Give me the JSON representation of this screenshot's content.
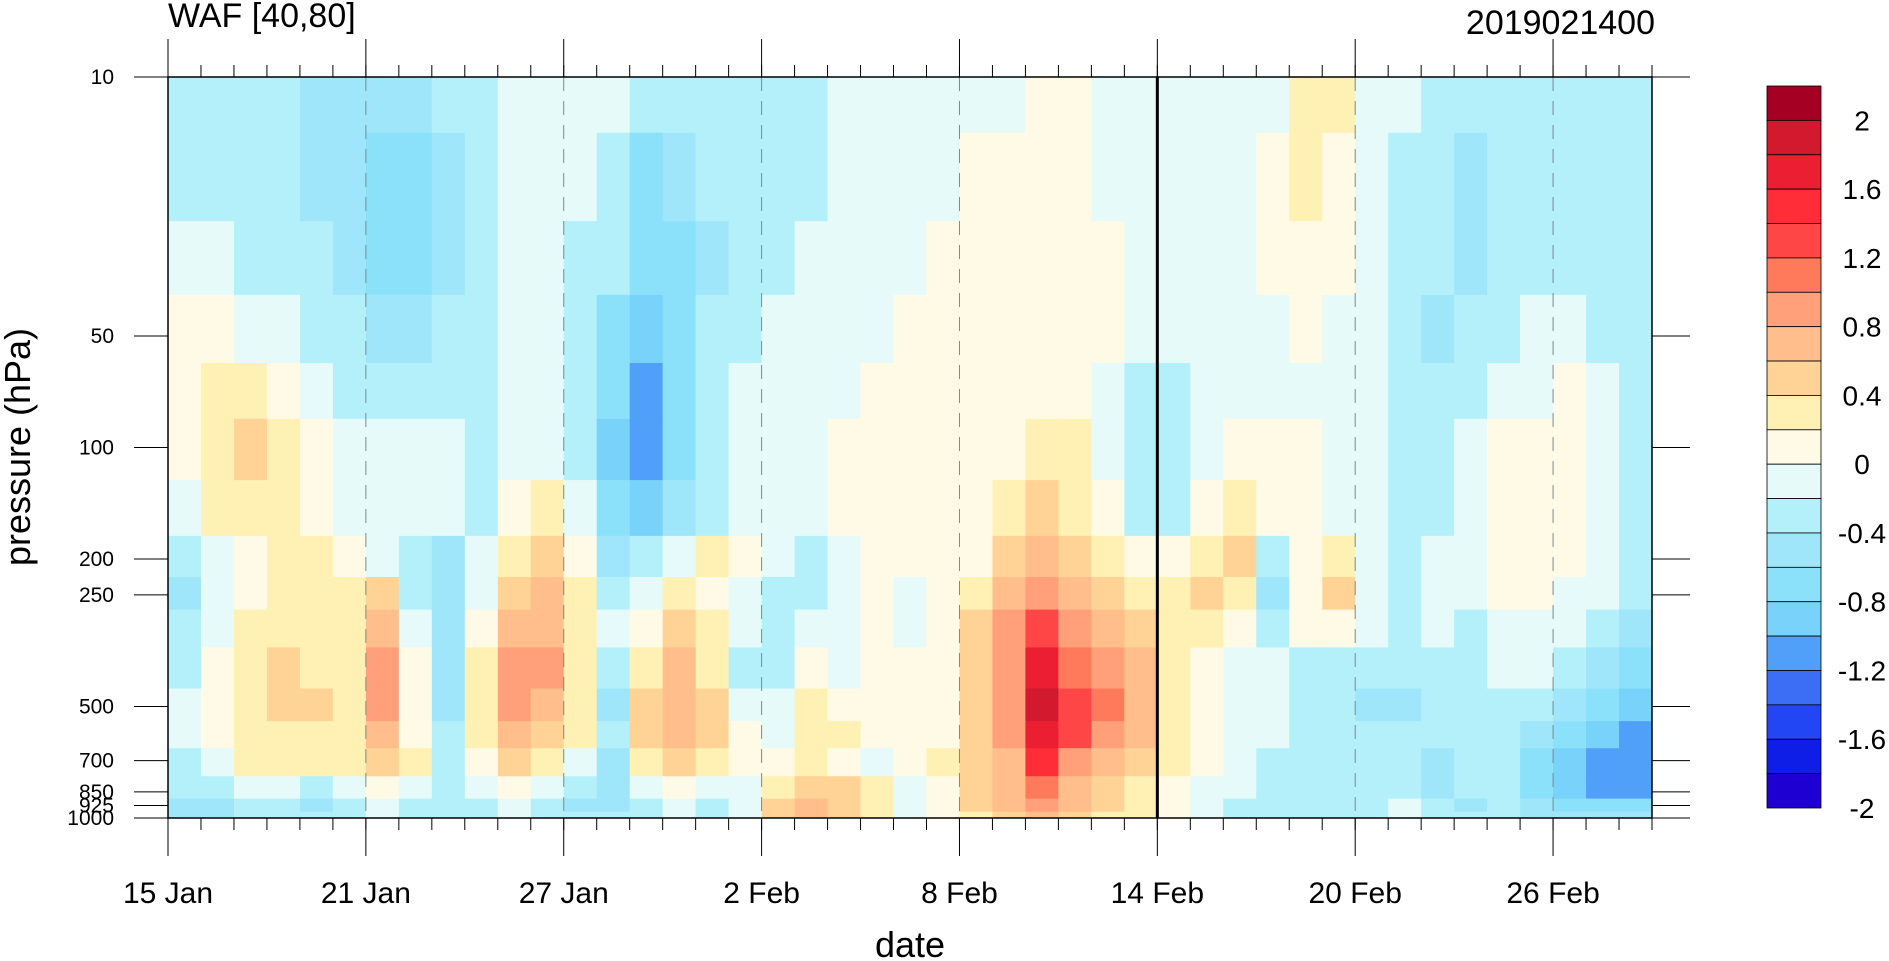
{
  "chart_data": {
    "type": "heatmap",
    "title_left": "WAF [40,80]",
    "title_right": "2019021400",
    "xlabel": "date",
    "ylabel": "pressure (hPa)",
    "x_ticks": [
      "15 Jan",
      "21 Jan",
      "27 Jan",
      "2 Feb",
      "8 Feb",
      "14 Feb",
      "20 Feb",
      "26 Feb"
    ],
    "x_range": [
      "2019-01-15",
      "2019-03-01"
    ],
    "y_ticks": [
      10,
      50,
      100,
      200,
      250,
      500,
      700,
      850,
      925,
      1000
    ],
    "y_range": [
      1000,
      10
    ],
    "y_scale": "log",
    "marked_date": "14 Feb",
    "colorbar": {
      "tick_labels": [
        "2",
        "1.6",
        "1.2",
        "0.8",
        "0.4",
        "0",
        "-0.4",
        "-0.8",
        "-1.2",
        "-1.6",
        "-2"
      ],
      "levels": [
        -2.2,
        -2.0,
        -1.8,
        -1.6,
        -1.4,
        -1.2,
        -1.0,
        -0.8,
        -0.6,
        -0.4,
        -0.2,
        0.0,
        0.2,
        0.4,
        0.6,
        0.8,
        1.0,
        1.2,
        1.4,
        1.6,
        1.8,
        2.0,
        2.2
      ],
      "colors": [
        "#1e00d2",
        "#0f1ee6",
        "#2346f5",
        "#3c6ef5",
        "#50a0fa",
        "#78d2fa",
        "#8ce1fa",
        "#a0e6fa",
        "#b4f0fa",
        "#e6fafa",
        "#fffae6",
        "#fff0b4",
        "#ffd296",
        "#ffbe8c",
        "#ffa07a",
        "#ff7a5a",
        "#ff4646",
        "#ff2d37",
        "#eb1e32",
        "#d2192d",
        "#a50023"
      ]
    },
    "grid": {
      "pressure": [
        10,
        20,
        30,
        50,
        70,
        100,
        150,
        200,
        250,
        300,
        400,
        500,
        600,
        700,
        850,
        925,
        1000
      ],
      "values": [
        [
          -0.5,
          -0.5,
          -0.5,
          -0.5,
          -0.7,
          -0.7,
          -0.7,
          -0.7,
          -0.5,
          -0.5,
          -0.3,
          -0.3,
          -0.3,
          -0.3,
          -0.5,
          -0.5,
          -0.5,
          -0.5,
          -0.5,
          -0.5,
          -0.3,
          -0.3,
          -0.3,
          -0.3,
          -0.3,
          -0.3,
          -0.1,
          -0.1,
          -0.3,
          -0.3,
          -0.3,
          -0.3,
          -0.3,
          -0.3,
          0.1,
          0.1,
          -0.3,
          -0.3,
          -0.5,
          -0.5,
          -0.5,
          -0.5,
          -0.5,
          -0.5,
          -0.5
        ],
        [
          -0.5,
          -0.5,
          -0.5,
          -0.5,
          -0.7,
          -0.7,
          -0.9,
          -0.9,
          -0.7,
          -0.5,
          -0.3,
          -0.3,
          -0.3,
          -0.5,
          -0.9,
          -0.7,
          -0.5,
          -0.5,
          -0.5,
          -0.5,
          -0.3,
          -0.3,
          -0.3,
          -0.3,
          -0.1,
          -0.1,
          -0.1,
          -0.1,
          -0.3,
          -0.3,
          -0.3,
          -0.3,
          -0.3,
          -0.1,
          0.1,
          -0.1,
          -0.3,
          -0.5,
          -0.5,
          -0.7,
          -0.5,
          -0.5,
          -0.5,
          -0.5,
          -0.5
        ],
        [
          -0.3,
          -0.3,
          -0.5,
          -0.5,
          -0.5,
          -0.7,
          -0.9,
          -0.9,
          -0.7,
          -0.5,
          -0.3,
          -0.3,
          -0.5,
          -0.5,
          -0.9,
          -0.9,
          -0.7,
          -0.5,
          -0.5,
          -0.3,
          -0.3,
          -0.3,
          -0.3,
          -0.1,
          -0.1,
          -0.1,
          -0.1,
          -0.1,
          -0.1,
          -0.3,
          -0.3,
          -0.3,
          -0.3,
          -0.1,
          -0.1,
          -0.1,
          -0.3,
          -0.5,
          -0.5,
          -0.7,
          -0.5,
          -0.5,
          -0.5,
          -0.5,
          -0.5
        ],
        [
          -0.1,
          -0.1,
          -0.3,
          -0.3,
          -0.5,
          -0.5,
          -0.7,
          -0.7,
          -0.5,
          -0.5,
          -0.3,
          -0.3,
          -0.5,
          -0.9,
          -1.1,
          -0.9,
          -0.5,
          -0.5,
          -0.3,
          -0.3,
          -0.3,
          -0.3,
          -0.1,
          -0.1,
          -0.1,
          -0.1,
          -0.1,
          -0.1,
          -0.1,
          -0.3,
          -0.3,
          -0.3,
          -0.3,
          -0.3,
          -0.1,
          -0.3,
          -0.3,
          -0.5,
          -0.7,
          -0.5,
          -0.5,
          -0.3,
          -0.3,
          -0.5,
          -0.5
        ],
        [
          -0.1,
          0.1,
          0.1,
          -0.1,
          -0.3,
          -0.5,
          -0.5,
          -0.5,
          -0.5,
          -0.5,
          -0.3,
          -0.3,
          -0.5,
          -0.9,
          -1.3,
          -0.9,
          -0.5,
          -0.3,
          -0.3,
          -0.3,
          -0.3,
          -0.1,
          -0.1,
          -0.1,
          -0.1,
          -0.1,
          -0.1,
          -0.1,
          -0.3,
          -0.5,
          -0.5,
          -0.3,
          -0.3,
          -0.3,
          -0.3,
          -0.3,
          -0.3,
          -0.5,
          -0.5,
          -0.5,
          -0.3,
          -0.3,
          -0.1,
          -0.3,
          -0.5
        ],
        [
          -0.1,
          0.1,
          0.3,
          0.1,
          -0.1,
          -0.3,
          -0.3,
          -0.3,
          -0.3,
          -0.5,
          -0.3,
          -0.3,
          -0.5,
          -1.1,
          -1.3,
          -0.9,
          -0.5,
          -0.3,
          -0.3,
          -0.3,
          -0.1,
          -0.1,
          -0.1,
          -0.1,
          -0.1,
          -0.1,
          0.1,
          0.1,
          -0.3,
          -0.5,
          -0.5,
          -0.3,
          -0.1,
          -0.1,
          -0.1,
          -0.3,
          -0.3,
          -0.5,
          -0.5,
          -0.3,
          -0.1,
          -0.1,
          -0.1,
          -0.3,
          -0.5
        ],
        [
          -0.3,
          0.1,
          0.1,
          0.1,
          -0.1,
          -0.3,
          -0.3,
          -0.3,
          -0.3,
          -0.5,
          -0.1,
          0.1,
          -0.3,
          -0.9,
          -1.1,
          -0.7,
          -0.5,
          -0.3,
          -0.3,
          -0.3,
          -0.1,
          -0.1,
          -0.1,
          -0.1,
          -0.1,
          0.1,
          0.3,
          0.1,
          -0.1,
          -0.5,
          -0.5,
          -0.1,
          0.1,
          -0.1,
          -0.1,
          -0.3,
          -0.3,
          -0.5,
          -0.5,
          -0.3,
          -0.1,
          -0.1,
          -0.1,
          -0.3,
          -0.5
        ],
        [
          -0.5,
          -0.3,
          -0.1,
          0.1,
          0.1,
          -0.1,
          -0.3,
          -0.5,
          -0.7,
          -0.3,
          0.1,
          0.3,
          -0.1,
          -0.7,
          -0.5,
          -0.3,
          0.1,
          -0.1,
          -0.3,
          -0.5,
          -0.3,
          -0.1,
          -0.1,
          -0.1,
          -0.1,
          0.3,
          0.5,
          0.3,
          0.1,
          -0.1,
          -0.1,
          0.1,
          0.3,
          -0.5,
          -0.1,
          0.1,
          -0.3,
          -0.5,
          -0.3,
          -0.3,
          -0.1,
          -0.1,
          -0.1,
          -0.3,
          -0.5
        ],
        [
          -0.7,
          -0.3,
          -0.1,
          0.1,
          0.1,
          0.1,
          0.3,
          -0.5,
          -0.7,
          -0.3,
          0.3,
          0.5,
          0.1,
          -0.5,
          -0.3,
          0.1,
          -0.1,
          -0.3,
          -0.5,
          -0.5,
          -0.3,
          -0.1,
          -0.3,
          -0.1,
          0.1,
          0.5,
          0.7,
          0.5,
          0.3,
          0.1,
          0.1,
          0.3,
          0.1,
          -0.7,
          -0.1,
          0.3,
          -0.3,
          -0.5,
          -0.3,
          -0.3,
          -0.1,
          -0.1,
          -0.3,
          -0.3,
          -0.5
        ],
        [
          -0.5,
          -0.3,
          0.1,
          0.1,
          0.1,
          0.1,
          0.5,
          -0.3,
          -0.7,
          -0.1,
          0.5,
          0.5,
          0.1,
          -0.3,
          -0.1,
          0.3,
          0.1,
          -0.3,
          -0.5,
          -0.3,
          -0.3,
          -0.1,
          -0.3,
          -0.1,
          0.3,
          0.7,
          1.1,
          0.7,
          0.5,
          0.3,
          0.1,
          0.1,
          -0.1,
          -0.5,
          -0.1,
          -0.1,
          -0.3,
          -0.5,
          -0.3,
          -0.5,
          -0.3,
          -0.3,
          -0.3,
          -0.5,
          -0.7
        ],
        [
          -0.5,
          -0.1,
          0.1,
          0.3,
          0.1,
          0.1,
          0.7,
          -0.1,
          -0.7,
          0.1,
          0.7,
          0.7,
          0.1,
          -0.5,
          0.1,
          0.5,
          0.1,
          -0.5,
          -0.5,
          -0.1,
          -0.3,
          -0.1,
          -0.1,
          -0.1,
          0.3,
          0.7,
          1.5,
          0.9,
          0.7,
          0.5,
          0.1,
          -0.1,
          -0.3,
          -0.3,
          -0.5,
          -0.5,
          -0.5,
          -0.5,
          -0.5,
          -0.5,
          -0.3,
          -0.3,
          -0.5,
          -0.7,
          -0.9
        ],
        [
          -0.3,
          -0.1,
          0.1,
          0.3,
          0.3,
          0.1,
          0.7,
          -0.1,
          -0.7,
          0.1,
          0.7,
          0.5,
          0.1,
          -0.7,
          0.3,
          0.5,
          0.3,
          -0.3,
          -0.3,
          0.1,
          -0.1,
          -0.1,
          -0.1,
          -0.1,
          0.3,
          0.7,
          1.7,
          1.1,
          0.9,
          0.5,
          0.1,
          -0.1,
          -0.3,
          -0.3,
          -0.5,
          -0.5,
          -0.7,
          -0.7,
          -0.5,
          -0.5,
          -0.5,
          -0.5,
          -0.7,
          -0.9,
          -1.1
        ],
        [
          -0.3,
          -0.1,
          0.1,
          0.1,
          0.1,
          0.1,
          0.5,
          -0.1,
          -0.5,
          0.1,
          0.5,
          0.3,
          0.1,
          -0.5,
          0.3,
          0.5,
          0.3,
          -0.1,
          -0.3,
          0.1,
          0.1,
          -0.1,
          -0.1,
          -0.1,
          0.3,
          0.7,
          1.5,
          1.1,
          0.7,
          0.5,
          0.1,
          -0.1,
          -0.3,
          -0.3,
          -0.5,
          -0.5,
          -0.5,
          -0.5,
          -0.5,
          -0.5,
          -0.5,
          -0.7,
          -0.9,
          -1.1,
          -1.3
        ],
        [
          -0.5,
          -0.3,
          0.1,
          0.1,
          0.1,
          0.1,
          0.3,
          0.1,
          -0.5,
          -0.1,
          0.3,
          0.1,
          -0.3,
          -0.7,
          0.1,
          0.3,
          0.1,
          -0.1,
          -0.1,
          0.1,
          -0.1,
          -0.3,
          -0.1,
          0.1,
          0.3,
          0.5,
          1.3,
          0.7,
          0.5,
          0.3,
          0.1,
          -0.1,
          -0.3,
          -0.5,
          -0.5,
          -0.5,
          -0.5,
          -0.5,
          -0.7,
          -0.5,
          -0.5,
          -0.9,
          -1.1,
          -1.3,
          -1.3
        ],
        [
          -0.5,
          -0.5,
          -0.3,
          -0.3,
          -0.5,
          -0.3,
          -0.1,
          -0.3,
          -0.5,
          -0.3,
          -0.1,
          -0.3,
          -0.5,
          -0.7,
          -0.3,
          -0.1,
          -0.3,
          -0.3,
          0.1,
          0.3,
          0.3,
          0.1,
          -0.3,
          -0.1,
          0.3,
          0.5,
          0.9,
          0.5,
          0.3,
          0.1,
          -0.1,
          -0.3,
          -0.3,
          -0.5,
          -0.5,
          -0.5,
          -0.5,
          -0.5,
          -0.7,
          -0.5,
          -0.5,
          -0.9,
          -1.1,
          -1.3,
          -1.3
        ],
        [
          -0.7,
          -0.7,
          -0.5,
          -0.5,
          -0.7,
          -0.5,
          -0.3,
          -0.5,
          -0.5,
          -0.5,
          -0.3,
          -0.5,
          -0.7,
          -0.7,
          -0.5,
          -0.3,
          -0.5,
          -0.3,
          0.3,
          0.5,
          0.3,
          0.1,
          -0.3,
          -0.1,
          0.3,
          0.5,
          0.7,
          0.5,
          0.3,
          0.1,
          -0.1,
          -0.3,
          -0.5,
          -0.5,
          -0.5,
          -0.5,
          -0.5,
          -0.3,
          -0.5,
          -0.7,
          -0.5,
          -0.7,
          -0.9,
          -0.9,
          -0.9
        ],
        [
          -0.7,
          -0.7,
          -0.5,
          -0.5,
          -0.5,
          -0.5,
          -0.3,
          -0.5,
          -0.5,
          -0.5,
          -0.3,
          -0.5,
          -0.5,
          -0.5,
          -0.5,
          -0.3,
          -0.5,
          -0.3,
          0.3,
          0.5,
          0.3,
          0.1,
          -0.3,
          -0.1,
          0.1,
          0.3,
          0.5,
          0.3,
          0.1,
          0.1,
          -0.1,
          -0.3,
          -0.5,
          -0.5,
          -0.5,
          -0.5,
          -0.5,
          -0.3,
          -0.5,
          -0.5,
          -0.5,
          -0.7,
          -0.7,
          -0.7,
          -0.7
        ]
      ]
    }
  }
}
